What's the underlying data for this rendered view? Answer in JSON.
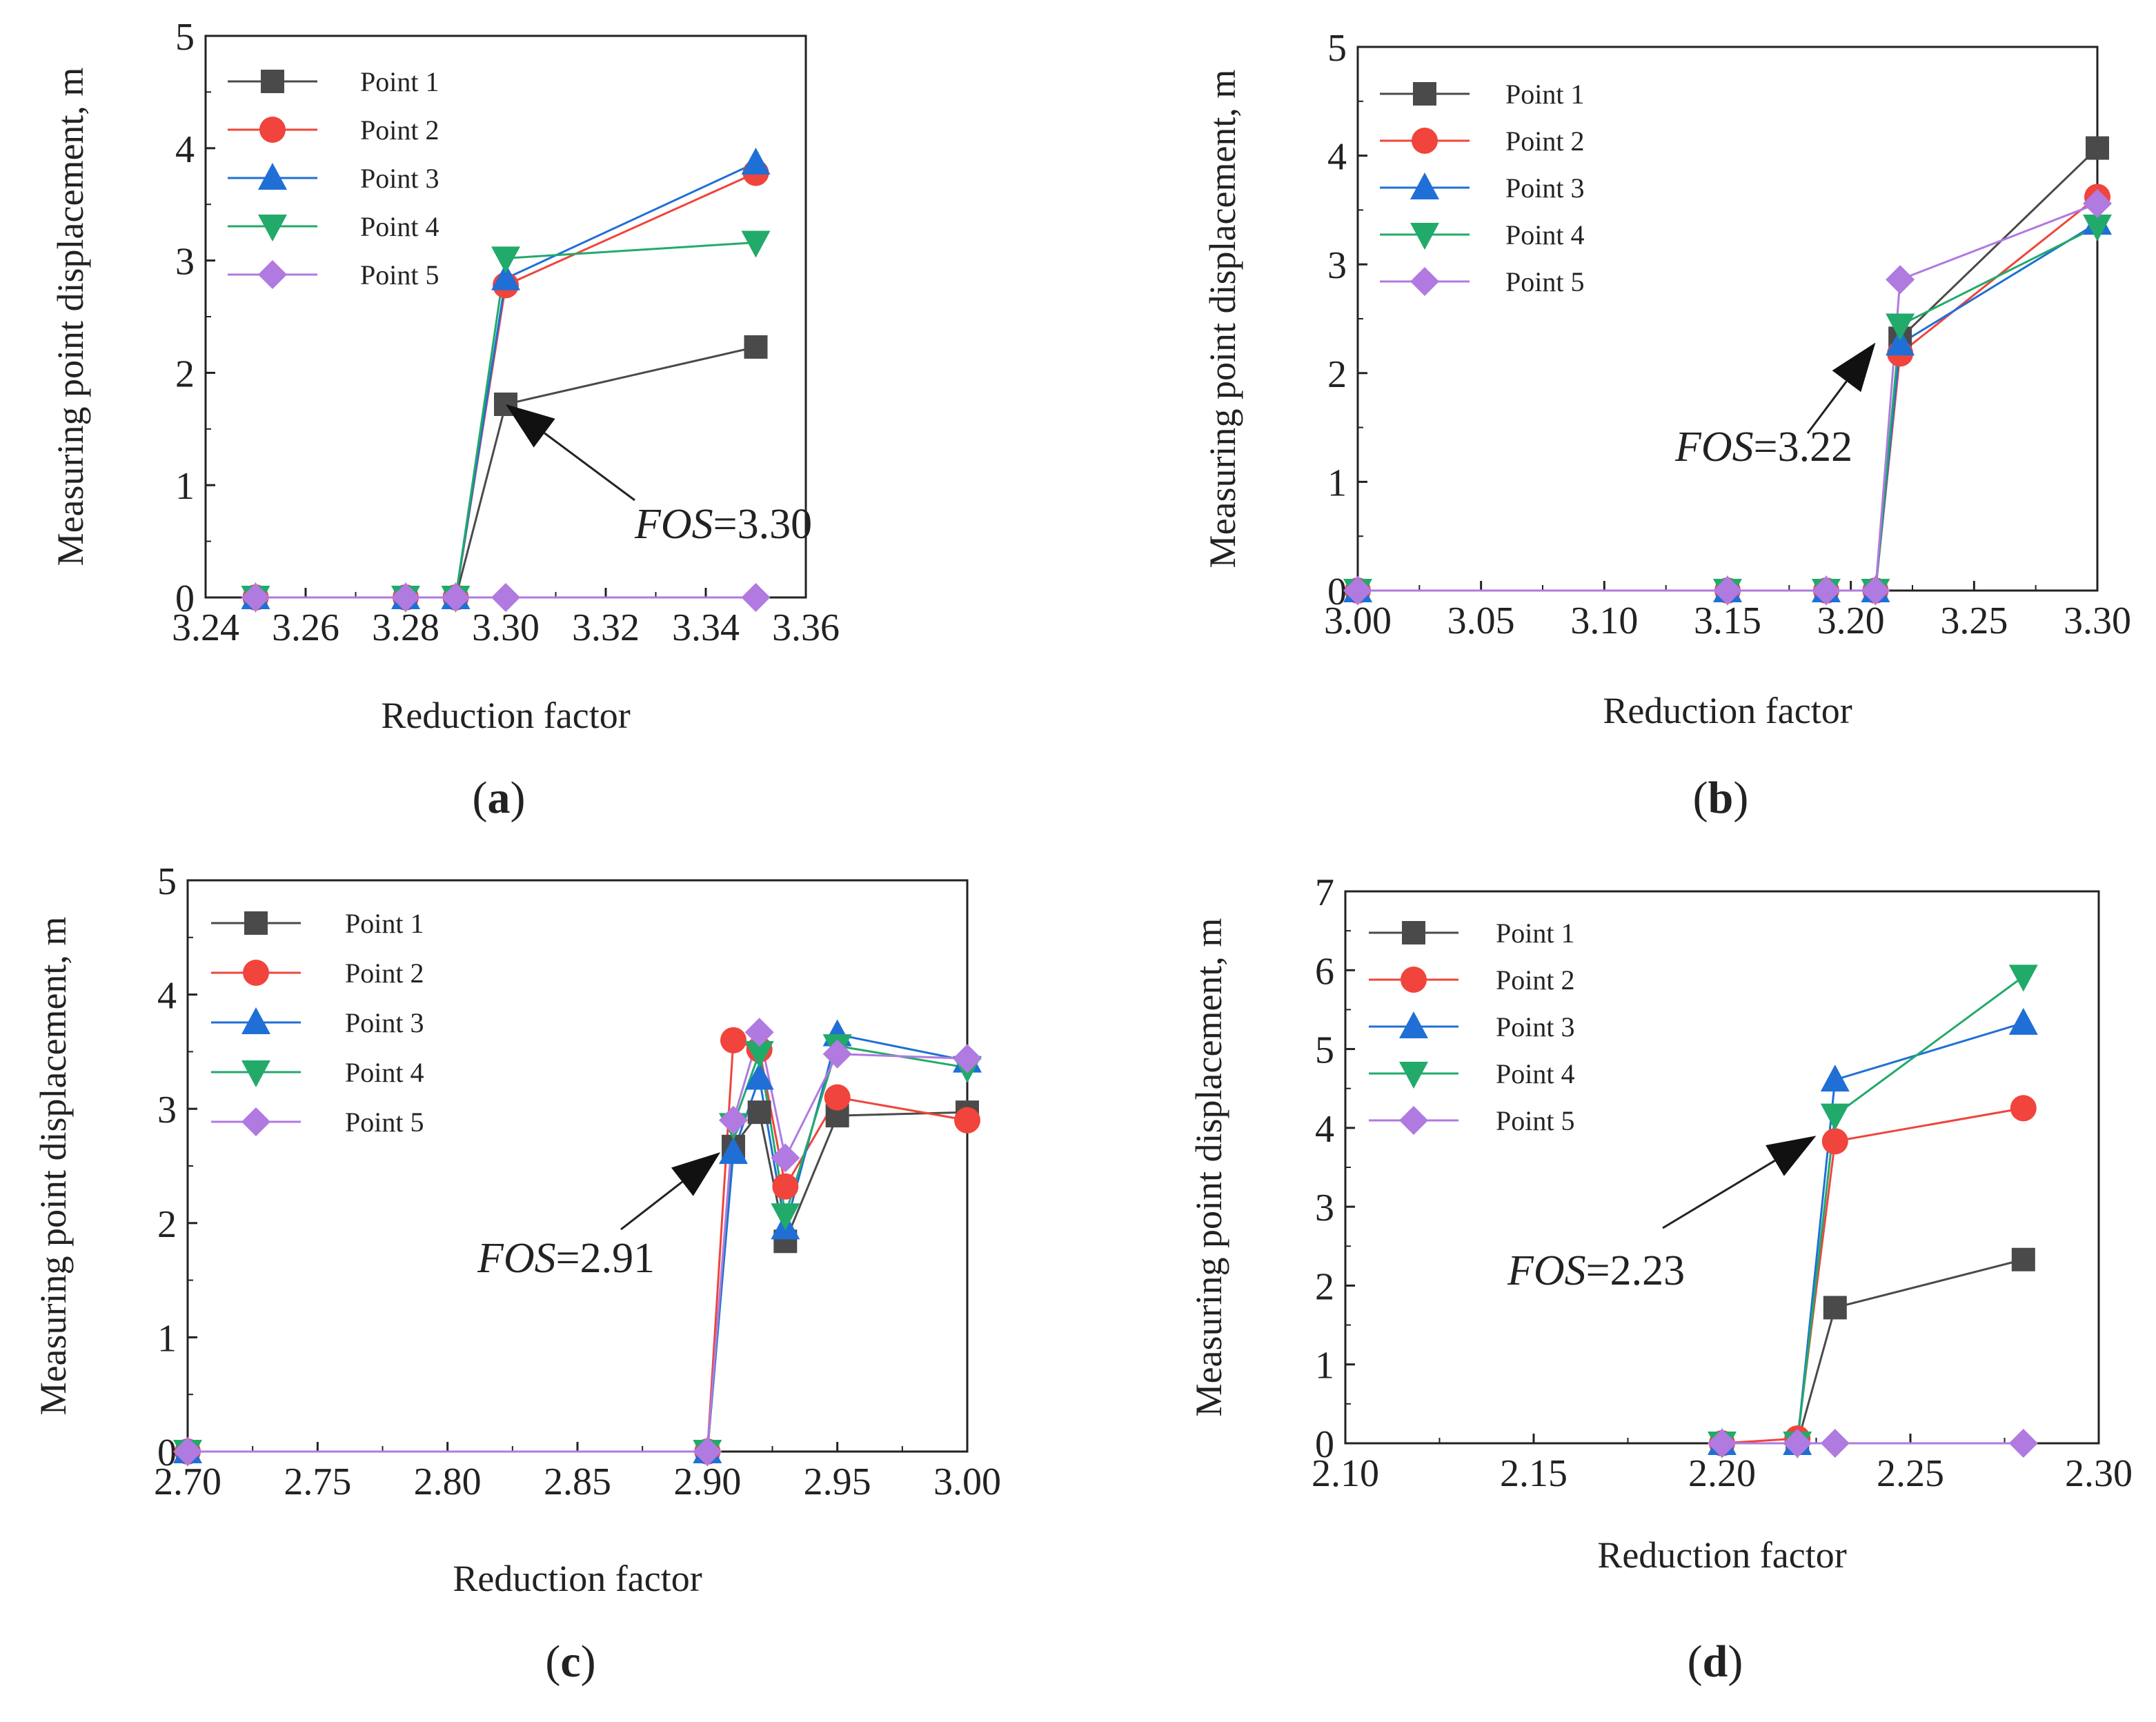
{
  "series_style": [
    {
      "color": "#4a4a4a",
      "marker": "square"
    },
    {
      "color": "#f0443c",
      "marker": "circle"
    },
    {
      "color": "#1f6fd6",
      "marker": "triangle-up"
    },
    {
      "color": "#22aa6a",
      "marker": "triangle-down"
    },
    {
      "color": "#b07ae0",
      "marker": "diamond"
    }
  ],
  "chart_data": [
    {
      "type": "line",
      "panel_label": "a",
      "xlabel": "Reduction factor",
      "ylabel": "Measuring point displacement, m",
      "xlim": [
        3.24,
        3.36
      ],
      "ylim": [
        0,
        5
      ],
      "xticks": [
        "3.24",
        "3.26",
        "3.28",
        "3.30",
        "3.32",
        "3.34",
        "3.36"
      ],
      "yticks": [
        "0",
        "1",
        "2",
        "3",
        "4",
        "5"
      ],
      "x": [
        3.25,
        3.28,
        3.29,
        3.3,
        3.35
      ],
      "series": [
        {
          "name": "Point 1",
          "values": [
            0,
            0,
            0,
            1.72,
            2.23
          ]
        },
        {
          "name": "Point 2",
          "values": [
            0,
            0,
            0,
            2.78,
            3.78
          ]
        },
        {
          "name": "Point 3",
          "values": [
            0,
            0,
            0,
            2.84,
            3.87
          ]
        },
        {
          "name": "Point 4",
          "values": [
            0,
            0,
            0,
            3.02,
            3.16
          ]
        },
        {
          "name": "Point 5",
          "values": [
            0,
            0,
            0,
            0,
            0
          ]
        }
      ],
      "annotation": {
        "italic": "FOS",
        "text": "=3.30",
        "target_x": 3.3,
        "target_y": 1.72
      }
    },
    {
      "type": "line",
      "panel_label": "b",
      "xlabel": "Reduction factor",
      "ylabel": "Measuring point displacement, m",
      "xlim": [
        3.0,
        3.3
      ],
      "ylim": [
        0,
        5
      ],
      "xticks": [
        "3.00",
        "3.05",
        "3.10",
        "3.15",
        "3.20",
        "3.25",
        "3.30"
      ],
      "yticks": [
        "0",
        "1",
        "2",
        "3",
        "4",
        "5"
      ],
      "x": [
        3.0,
        3.15,
        3.19,
        3.21,
        3.22,
        3.3
      ],
      "series": [
        {
          "name": "Point 1",
          "values": [
            0,
            0,
            0,
            0,
            2.32,
            4.07
          ]
        },
        {
          "name": "Point 2",
          "values": [
            0,
            0,
            0,
            0,
            2.18,
            3.62
          ]
        },
        {
          "name": "Point 3",
          "values": [
            0,
            0,
            0,
            0,
            2.27,
            3.38
          ]
        },
        {
          "name": "Point 4",
          "values": [
            0,
            0,
            0,
            0,
            2.44,
            3.35
          ]
        },
        {
          "name": "Point 5",
          "values": [
            0,
            0,
            0,
            0,
            2.86,
            3.56
          ]
        }
      ],
      "annotation": {
        "italic": "FOS",
        "text": "=3.22",
        "target_x": 3.21,
        "target_y": 2.28
      }
    },
    {
      "type": "line",
      "panel_label": "c",
      "xlabel": "Reduction factor",
      "ylabel": "Measuring point displacement, m",
      "xlim": [
        2.7,
        3.0
      ],
      "ylim": [
        0,
        5
      ],
      "xticks": [
        "2.70",
        "2.75",
        "2.80",
        "2.85",
        "2.90",
        "2.95",
        "3.00"
      ],
      "yticks": [
        "0",
        "1",
        "2",
        "3",
        "4",
        "5"
      ],
      "x": [
        2.7,
        2.9,
        2.91,
        2.92,
        2.93,
        2.95,
        3.0
      ],
      "series": [
        {
          "name": "Point 1",
          "values": [
            0,
            0,
            2.67,
            2.97,
            1.84,
            2.94,
            2.97
          ]
        },
        {
          "name": "Point 2",
          "values": [
            0,
            0,
            3.6,
            3.52,
            2.32,
            3.1,
            2.9
          ]
        },
        {
          "name": "Point 3",
          "values": [
            0,
            0,
            2.62,
            3.27,
            1.96,
            3.65,
            3.42
          ]
        },
        {
          "name": "Point 4",
          "values": [
            0,
            0,
            2.86,
            3.49,
            2.07,
            3.55,
            3.36
          ]
        },
        {
          "name": "Point 5",
          "values": [
            0,
            0,
            2.9,
            3.67,
            2.57,
            3.48,
            3.44
          ]
        }
      ],
      "annotation": {
        "italic": "FOS",
        "text": "=2.91",
        "target_x": 2.905,
        "target_y": 2.62
      }
    },
    {
      "type": "line",
      "panel_label": "d",
      "xlabel": "Reduction factor",
      "ylabel": "Measuring point displacement, m",
      "xlim": [
        2.1,
        2.3
      ],
      "ylim": [
        0,
        7
      ],
      "xticks": [
        "2.10",
        "2.15",
        "2.20",
        "2.25",
        "2.30"
      ],
      "yticks": [
        "0",
        "1",
        "2",
        "3",
        "4",
        "5",
        "6",
        "7"
      ],
      "x": [
        2.2,
        2.22,
        2.23,
        2.28
      ],
      "series": [
        {
          "name": "Point 1",
          "values": [
            0,
            0,
            1.72,
            2.33
          ]
        },
        {
          "name": "Point 2",
          "values": [
            0,
            0.06,
            3.83,
            4.25
          ]
        },
        {
          "name": "Point 3",
          "values": [
            0,
            0,
            4.61,
            5.33
          ]
        },
        {
          "name": "Point 4",
          "values": [
            0,
            0,
            4.16,
            5.92
          ]
        },
        {
          "name": "Point 5",
          "values": [
            0,
            0,
            0,
            0
          ]
        }
      ],
      "annotation": {
        "italic": "FOS",
        "text": "=2.23",
        "target_x": 2.225,
        "target_y": 3.9
      }
    }
  ]
}
